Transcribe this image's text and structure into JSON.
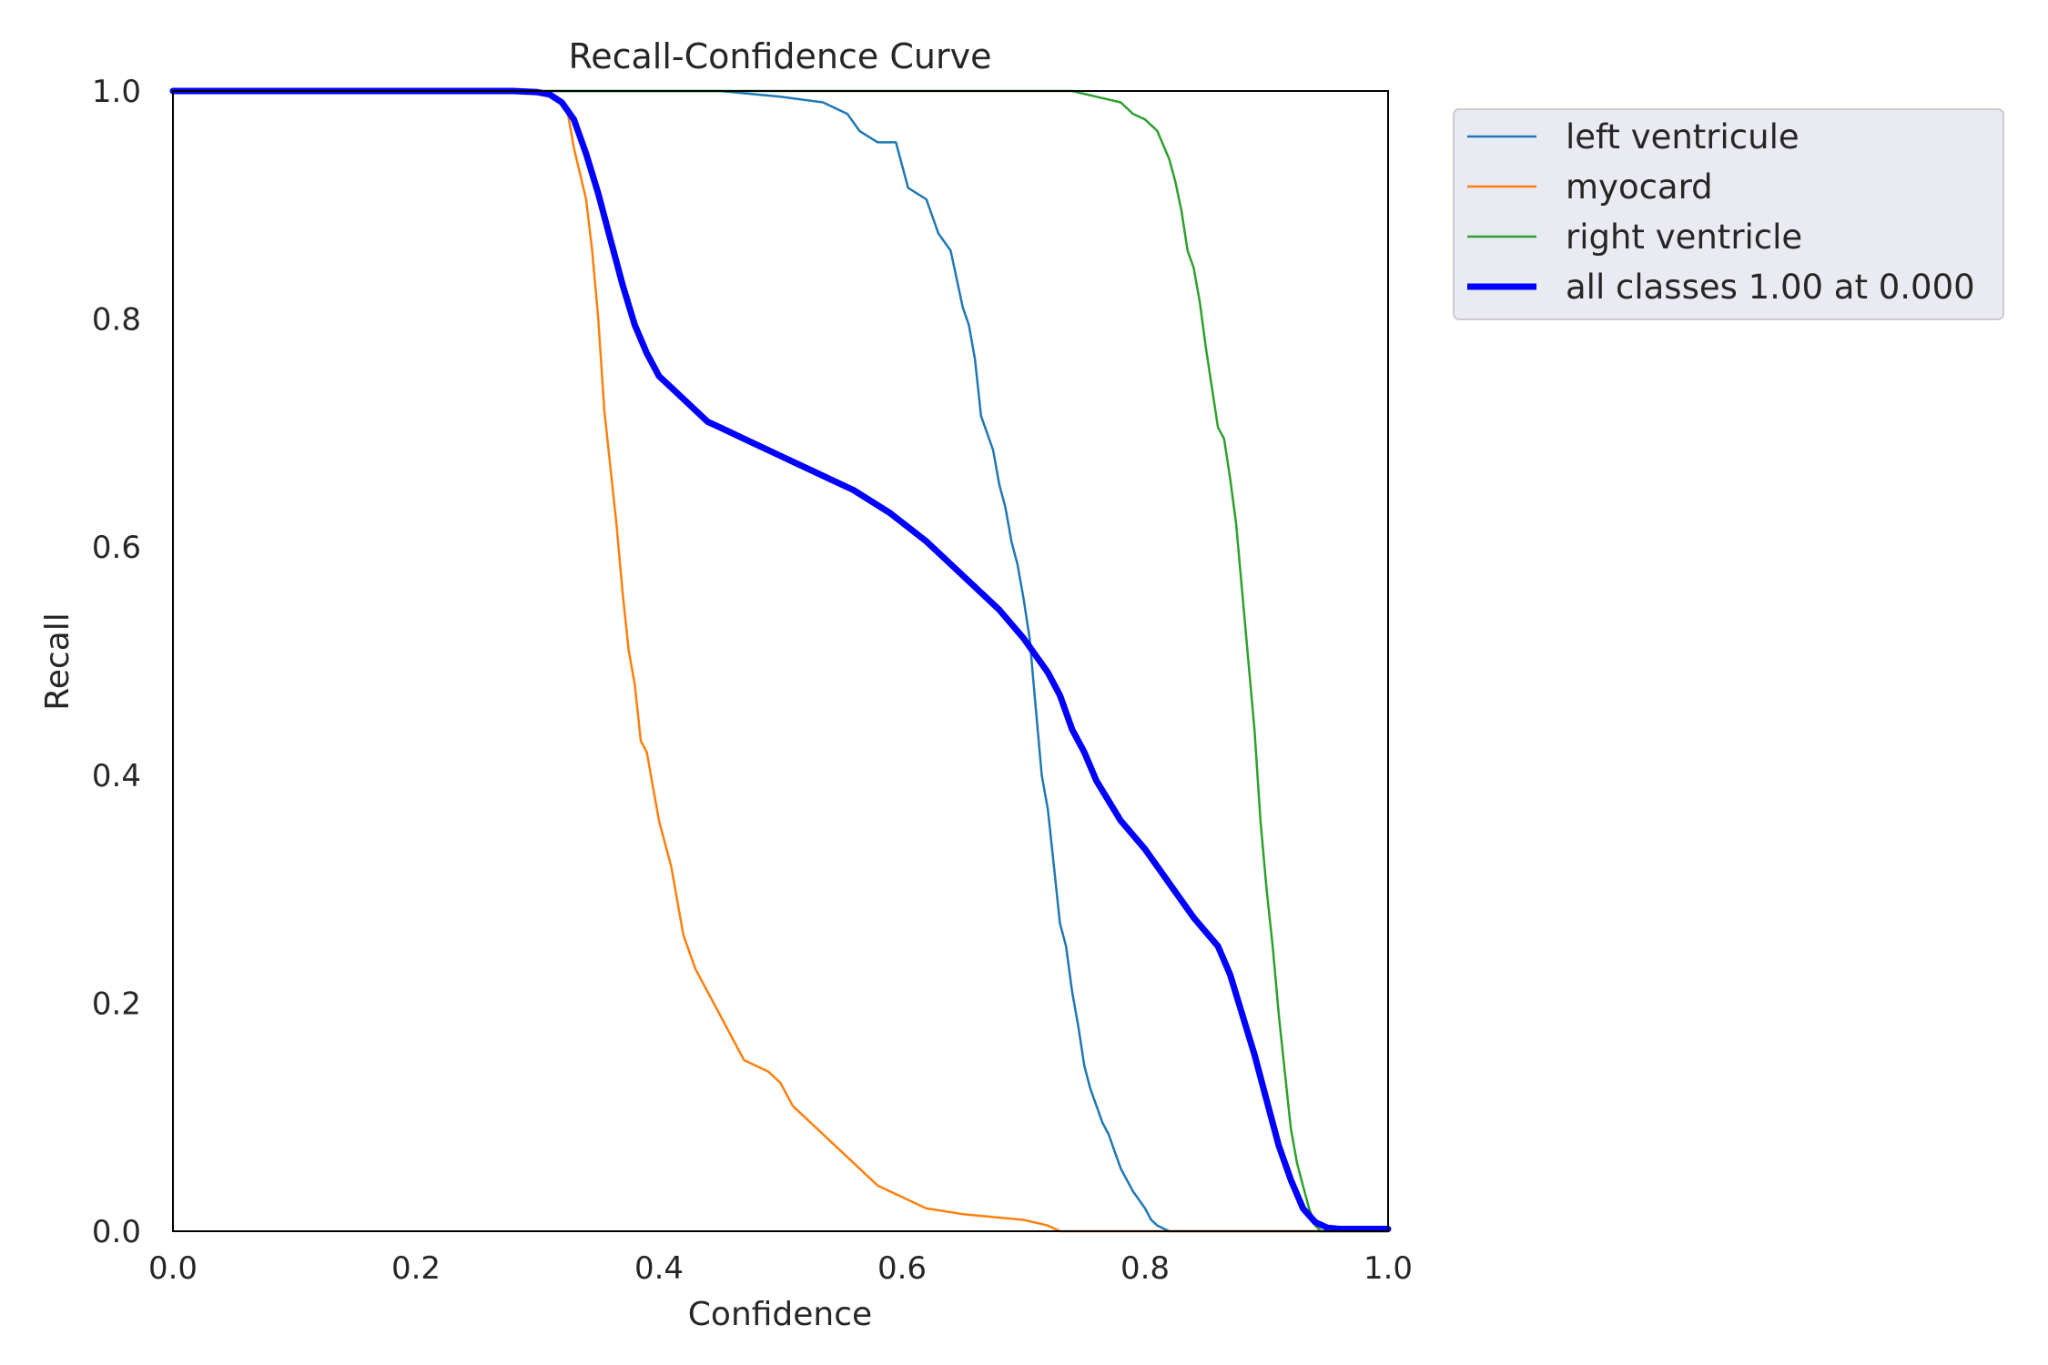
{
  "chart_data": {
    "type": "line",
    "title": "Recall-Confidence Curve",
    "xlabel": "Confidence",
    "ylabel": "Recall",
    "xlim": [
      0,
      1
    ],
    "ylim": [
      0,
      1
    ],
    "xticks": [
      "0.0",
      "0.2",
      "0.4",
      "0.6",
      "0.8",
      "1.0"
    ],
    "yticks": [
      "0.0",
      "0.2",
      "0.4",
      "0.6",
      "0.8",
      "1.0"
    ],
    "grid": false,
    "legend_position": "outside-top-right",
    "series": [
      {
        "name": "left ventricule",
        "color": "#1f77b4",
        "width": "thin",
        "x": [
          0.0,
          0.3,
          0.45,
          0.5,
          0.535,
          0.555,
          0.565,
          0.58,
          0.595,
          0.6,
          0.605,
          0.62,
          0.63,
          0.64,
          0.645,
          0.65,
          0.655,
          0.66,
          0.665,
          0.67,
          0.675,
          0.68,
          0.685,
          0.69,
          0.695,
          0.7,
          0.705,
          0.71,
          0.715,
          0.72,
          0.725,
          0.73,
          0.735,
          0.74,
          0.745,
          0.75,
          0.755,
          0.76,
          0.765,
          0.77,
          0.775,
          0.78,
          0.79,
          0.8,
          0.805,
          0.81,
          0.82,
          0.83,
          0.838,
          0.84,
          0.85,
          1.0
        ],
        "y": [
          1.0,
          1.0,
          1.0,
          0.995,
          0.99,
          0.98,
          0.965,
          0.955,
          0.955,
          0.935,
          0.915,
          0.905,
          0.875,
          0.86,
          0.835,
          0.81,
          0.795,
          0.765,
          0.715,
          0.7,
          0.685,
          0.655,
          0.635,
          0.605,
          0.585,
          0.555,
          0.52,
          0.46,
          0.4,
          0.37,
          0.32,
          0.27,
          0.25,
          0.21,
          0.18,
          0.145,
          0.125,
          0.11,
          0.095,
          0.085,
          0.07,
          0.055,
          0.035,
          0.02,
          0.01,
          0.005,
          0.0,
          0.0,
          0.0,
          0.0,
          0.0,
          0.0
        ]
      },
      {
        "name": "myocard",
        "color": "#ff7f0e",
        "width": "thin",
        "x": [
          0.0,
          0.3,
          0.32,
          0.325,
          0.33,
          0.34,
          0.345,
          0.35,
          0.355,
          0.36,
          0.365,
          0.37,
          0.375,
          0.38,
          0.385,
          0.39,
          0.395,
          0.4,
          0.41,
          0.42,
          0.43,
          0.44,
          0.45,
          0.46,
          0.47,
          0.48,
          0.49,
          0.5,
          0.51,
          0.52,
          0.53,
          0.54,
          0.55,
          0.56,
          0.57,
          0.58,
          0.59,
          0.6,
          0.62,
          0.65,
          0.7,
          0.72,
          0.73,
          1.0
        ],
        "y": [
          1.0,
          1.0,
          0.99,
          0.98,
          0.95,
          0.905,
          0.86,
          0.8,
          0.72,
          0.67,
          0.62,
          0.56,
          0.51,
          0.48,
          0.43,
          0.42,
          0.39,
          0.36,
          0.32,
          0.26,
          0.23,
          0.21,
          0.19,
          0.17,
          0.15,
          0.145,
          0.14,
          0.13,
          0.11,
          0.1,
          0.09,
          0.08,
          0.07,
          0.06,
          0.05,
          0.04,
          0.035,
          0.03,
          0.02,
          0.015,
          0.01,
          0.005,
          0.0,
          0.0
        ]
      },
      {
        "name": "right ventricle",
        "color": "#2ca02c",
        "width": "thin",
        "x": [
          0.0,
          0.74,
          0.76,
          0.78,
          0.79,
          0.8,
          0.81,
          0.82,
          0.825,
          0.83,
          0.835,
          0.84,
          0.845,
          0.85,
          0.855,
          0.86,
          0.865,
          0.87,
          0.875,
          0.88,
          0.885,
          0.89,
          0.895,
          0.9,
          0.905,
          0.91,
          0.915,
          0.92,
          0.925,
          0.93,
          0.935,
          0.94,
          0.945,
          0.95,
          1.0
        ],
        "y": [
          1.0,
          1.0,
          0.995,
          0.99,
          0.98,
          0.975,
          0.965,
          0.94,
          0.92,
          0.895,
          0.86,
          0.845,
          0.815,
          0.775,
          0.74,
          0.705,
          0.695,
          0.66,
          0.62,
          0.56,
          0.5,
          0.44,
          0.36,
          0.3,
          0.25,
          0.19,
          0.14,
          0.09,
          0.06,
          0.04,
          0.02,
          0.005,
          0.0,
          0.0,
          0.0
        ]
      },
      {
        "name": "all classes 1.00 at 0.000",
        "color": "#0000ff",
        "width": "thick",
        "x": [
          0.0,
          0.28,
          0.3,
          0.31,
          0.32,
          0.33,
          0.34,
          0.35,
          0.36,
          0.37,
          0.38,
          0.39,
          0.4,
          0.41,
          0.42,
          0.43,
          0.44,
          0.45,
          0.47,
          0.5,
          0.53,
          0.56,
          0.59,
          0.62,
          0.65,
          0.68,
          0.7,
          0.72,
          0.73,
          0.74,
          0.75,
          0.76,
          0.78,
          0.8,
          0.82,
          0.84,
          0.86,
          0.87,
          0.88,
          0.89,
          0.9,
          0.91,
          0.92,
          0.93,
          0.94,
          0.95,
          0.96,
          1.0
        ],
        "y": [
          1.0,
          1.0,
          0.999,
          0.997,
          0.99,
          0.975,
          0.945,
          0.91,
          0.87,
          0.83,
          0.795,
          0.77,
          0.75,
          0.74,
          0.73,
          0.72,
          0.71,
          0.705,
          0.695,
          0.68,
          0.665,
          0.65,
          0.63,
          0.605,
          0.575,
          0.545,
          0.52,
          0.49,
          0.47,
          0.44,
          0.42,
          0.395,
          0.36,
          0.335,
          0.305,
          0.275,
          0.25,
          0.225,
          0.19,
          0.155,
          0.115,
          0.075,
          0.045,
          0.02,
          0.008,
          0.003,
          0.002,
          0.002
        ]
      }
    ]
  }
}
